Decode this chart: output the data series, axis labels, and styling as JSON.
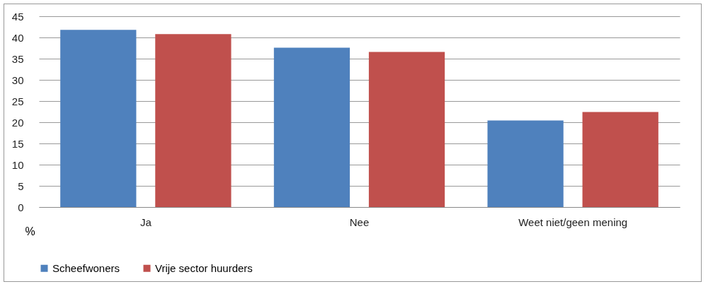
{
  "chart_data": {
    "type": "bar",
    "ylabel": "%",
    "categories": [
      "Ja",
      "Nee",
      "Weet niet/geen mening"
    ],
    "series": [
      {
        "name": "Scheefwoners",
        "color": "#4f81bd",
        "values": [
          41.8,
          37.6,
          20.4
        ]
      },
      {
        "name": "Vrije sector huurders",
        "color": "#c0504d",
        "values": [
          40.8,
          36.6,
          22.4
        ]
      }
    ],
    "ylim": [
      0,
      45
    ],
    "yticks": [
      0,
      5,
      10,
      15,
      20,
      25,
      30,
      35,
      40,
      45
    ],
    "grid": "y",
    "legend": "bottom"
  }
}
